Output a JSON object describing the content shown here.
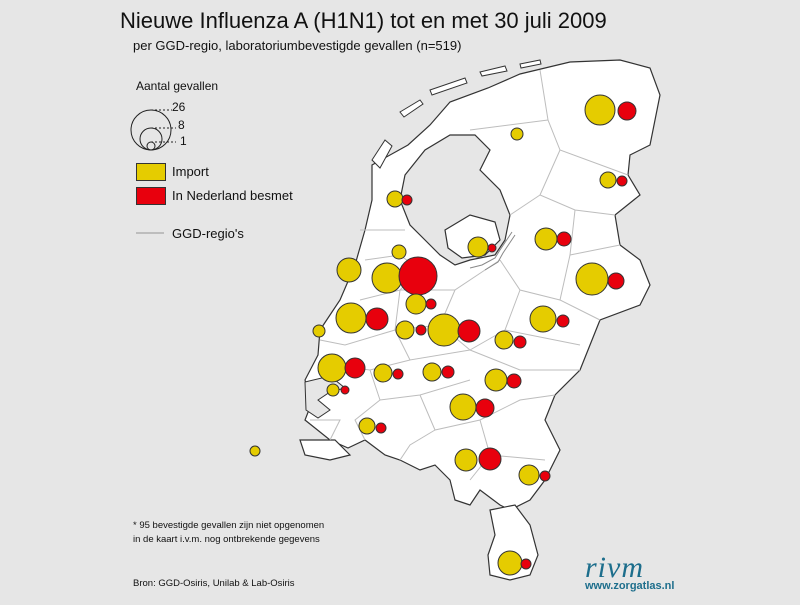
{
  "title": "Nieuwe Influenza A (H1N1) tot en met 30 juli 2009",
  "subtitle": "per GGD-regio, laboratoriumbevestigde gevallen (n=519)",
  "legend": {
    "size_title": "Aantal gevallen",
    "sizes": [
      "26",
      "8",
      "1"
    ],
    "import_label": "Import",
    "local_label": "In Nederland besmet",
    "region_label": "GGD-regio's"
  },
  "colors": {
    "import": "#e5cc00",
    "local": "#e8000d",
    "land": "#ffffff",
    "background": "#e6e6e6",
    "border": "#333333",
    "region_line": "#bdbdbd",
    "brand": "#1d6e8c"
  },
  "footnote": {
    "line1": "* 95 bevestigde gevallen zijn niet opgenomen",
    "line2": "in de kaart i.v.m. nog ontbrekende gegevens"
  },
  "source": "Bron: GGD-Osiris, Unilab & Lab-Osiris",
  "logo": {
    "word": "rivm",
    "url": "www.zorgatlas.nl"
  }
}
